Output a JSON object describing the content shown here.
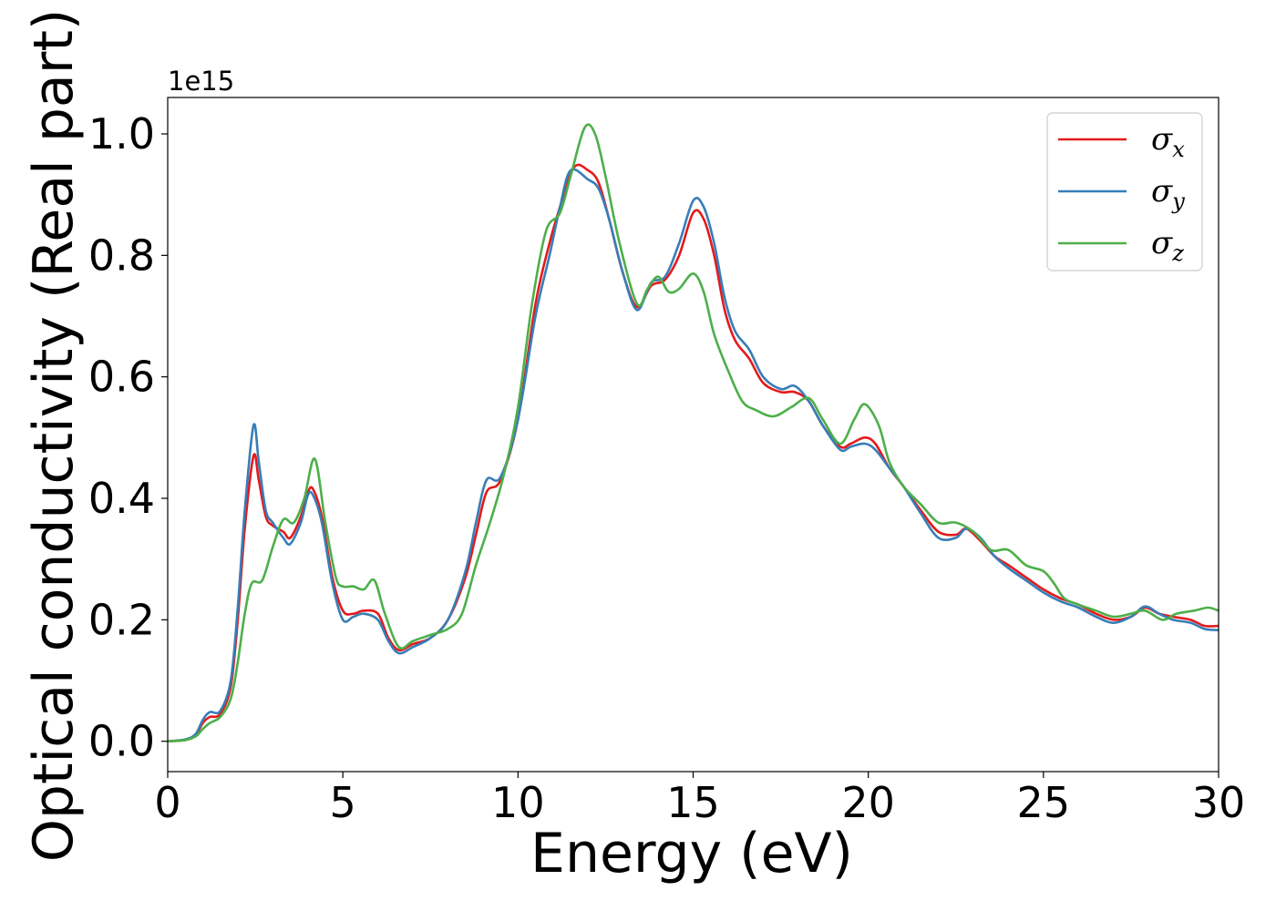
{
  "chart_data": {
    "type": "line",
    "title": "",
    "xlabel": "Energy (eV)",
    "ylabel": "Optical conductivity (Real part)",
    "y_offset_label": "1e15",
    "xlim": [
      0,
      30
    ],
    "ylim": [
      -0.05,
      1.06
    ],
    "x_ticks": [
      0,
      5,
      10,
      15,
      20,
      25,
      30
    ],
    "x_tick_labels": [
      "0",
      "5",
      "10",
      "15",
      "20",
      "25",
      "30"
    ],
    "y_ticks": [
      0.0,
      0.2,
      0.4,
      0.6,
      0.8,
      1.0
    ],
    "y_tick_labels": [
      "0.0",
      "0.2",
      "0.4",
      "0.6",
      "0.8",
      "1.0"
    ],
    "grid": false,
    "legend_position": "upper right",
    "series": [
      {
        "name": "σx",
        "name_base": "σ",
        "name_sub": "x",
        "color": "#e41a1c",
        "points": [
          [
            0,
            0.0
          ],
          [
            0.5,
            0.002
          ],
          [
            0.8,
            0.01
          ],
          [
            1.0,
            0.03
          ],
          [
            1.2,
            0.04
          ],
          [
            1.5,
            0.045
          ],
          [
            1.8,
            0.09
          ],
          [
            2.0,
            0.2
          ],
          [
            2.2,
            0.35
          ],
          [
            2.45,
            0.47
          ],
          [
            2.6,
            0.43
          ],
          [
            2.8,
            0.37
          ],
          [
            3.0,
            0.355
          ],
          [
            3.3,
            0.345
          ],
          [
            3.5,
            0.335
          ],
          [
            3.8,
            0.37
          ],
          [
            4.0,
            0.41
          ],
          [
            4.15,
            0.415
          ],
          [
            4.4,
            0.37
          ],
          [
            4.7,
            0.27
          ],
          [
            5.0,
            0.215
          ],
          [
            5.3,
            0.21
          ],
          [
            5.6,
            0.215
          ],
          [
            6.0,
            0.21
          ],
          [
            6.3,
            0.17
          ],
          [
            6.6,
            0.15
          ],
          [
            7.0,
            0.16
          ],
          [
            7.5,
            0.17
          ],
          [
            8.0,
            0.2
          ],
          [
            8.5,
            0.27
          ],
          [
            8.8,
            0.34
          ],
          [
            9.1,
            0.41
          ],
          [
            9.5,
            0.43
          ],
          [
            10.0,
            0.53
          ],
          [
            10.5,
            0.72
          ],
          [
            10.9,
            0.82
          ],
          [
            11.2,
            0.88
          ],
          [
            11.6,
            0.945
          ],
          [
            12.0,
            0.94
          ],
          [
            12.3,
            0.92
          ],
          [
            12.6,
            0.86
          ],
          [
            13.0,
            0.77
          ],
          [
            13.4,
            0.715
          ],
          [
            13.8,
            0.75
          ],
          [
            14.2,
            0.76
          ],
          [
            14.6,
            0.8
          ],
          [
            15.0,
            0.87
          ],
          [
            15.3,
            0.86
          ],
          [
            15.6,
            0.8
          ],
          [
            15.9,
            0.71
          ],
          [
            16.2,
            0.66
          ],
          [
            16.6,
            0.63
          ],
          [
            17.0,
            0.59
          ],
          [
            17.5,
            0.575
          ],
          [
            17.9,
            0.575
          ],
          [
            18.3,
            0.56
          ],
          [
            18.7,
            0.52
          ],
          [
            19.2,
            0.485
          ],
          [
            19.5,
            0.49
          ],
          [
            19.9,
            0.5
          ],
          [
            20.2,
            0.49
          ],
          [
            20.6,
            0.45
          ],
          [
            21.0,
            0.42
          ],
          [
            21.5,
            0.38
          ],
          [
            22.0,
            0.345
          ],
          [
            22.5,
            0.34
          ],
          [
            22.8,
            0.35
          ],
          [
            23.2,
            0.33
          ],
          [
            23.6,
            0.305
          ],
          [
            24.0,
            0.29
          ],
          [
            24.5,
            0.27
          ],
          [
            25.0,
            0.25
          ],
          [
            25.5,
            0.235
          ],
          [
            26.0,
            0.225
          ],
          [
            26.5,
            0.21
          ],
          [
            27.0,
            0.2
          ],
          [
            27.5,
            0.205
          ],
          [
            27.9,
            0.22
          ],
          [
            28.3,
            0.21
          ],
          [
            28.7,
            0.205
          ],
          [
            29.2,
            0.2
          ],
          [
            29.6,
            0.19
          ],
          [
            30.0,
            0.19
          ]
        ]
      },
      {
        "name": "σy",
        "name_base": "σ",
        "name_sub": "y",
        "color": "#377eb8",
        "points": [
          [
            0,
            0.0
          ],
          [
            0.5,
            0.003
          ],
          [
            0.8,
            0.012
          ],
          [
            1.0,
            0.035
          ],
          [
            1.2,
            0.048
          ],
          [
            1.5,
            0.05
          ],
          [
            1.8,
            0.1
          ],
          [
            2.0,
            0.22
          ],
          [
            2.2,
            0.38
          ],
          [
            2.45,
            0.52
          ],
          [
            2.6,
            0.46
          ],
          [
            2.8,
            0.38
          ],
          [
            3.0,
            0.36
          ],
          [
            3.3,
            0.335
          ],
          [
            3.5,
            0.325
          ],
          [
            3.8,
            0.36
          ],
          [
            4.0,
            0.405
          ],
          [
            4.15,
            0.405
          ],
          [
            4.4,
            0.36
          ],
          [
            4.7,
            0.26
          ],
          [
            5.0,
            0.2
          ],
          [
            5.3,
            0.205
          ],
          [
            5.6,
            0.21
          ],
          [
            6.0,
            0.2
          ],
          [
            6.3,
            0.165
          ],
          [
            6.6,
            0.145
          ],
          [
            7.0,
            0.155
          ],
          [
            7.5,
            0.17
          ],
          [
            8.0,
            0.2
          ],
          [
            8.5,
            0.28
          ],
          [
            8.8,
            0.36
          ],
          [
            9.1,
            0.43
          ],
          [
            9.5,
            0.435
          ],
          [
            10.0,
            0.53
          ],
          [
            10.5,
            0.7
          ],
          [
            10.9,
            0.8
          ],
          [
            11.2,
            0.88
          ],
          [
            11.5,
            0.94
          ],
          [
            12.0,
            0.925
          ],
          [
            12.3,
            0.91
          ],
          [
            12.6,
            0.86
          ],
          [
            13.0,
            0.77
          ],
          [
            13.4,
            0.71
          ],
          [
            13.8,
            0.755
          ],
          [
            14.2,
            0.765
          ],
          [
            14.6,
            0.82
          ],
          [
            15.0,
            0.89
          ],
          [
            15.3,
            0.88
          ],
          [
            15.6,
            0.82
          ],
          [
            15.9,
            0.73
          ],
          [
            16.2,
            0.675
          ],
          [
            16.6,
            0.645
          ],
          [
            17.0,
            0.6
          ],
          [
            17.5,
            0.58
          ],
          [
            17.9,
            0.585
          ],
          [
            18.3,
            0.56
          ],
          [
            18.7,
            0.52
          ],
          [
            19.2,
            0.48
          ],
          [
            19.5,
            0.485
          ],
          [
            19.9,
            0.49
          ],
          [
            20.2,
            0.48
          ],
          [
            20.6,
            0.45
          ],
          [
            21.0,
            0.42
          ],
          [
            21.5,
            0.375
          ],
          [
            22.0,
            0.335
          ],
          [
            22.5,
            0.335
          ],
          [
            22.8,
            0.35
          ],
          [
            23.2,
            0.335
          ],
          [
            23.6,
            0.305
          ],
          [
            24.0,
            0.285
          ],
          [
            24.5,
            0.265
          ],
          [
            25.0,
            0.245
          ],
          [
            25.5,
            0.23
          ],
          [
            26.0,
            0.22
          ],
          [
            26.5,
            0.205
          ],
          [
            27.0,
            0.195
          ],
          [
            27.5,
            0.205
          ],
          [
            27.9,
            0.222
          ],
          [
            28.3,
            0.21
          ],
          [
            28.7,
            0.2
          ],
          [
            29.2,
            0.195
          ],
          [
            29.6,
            0.185
          ],
          [
            30.0,
            0.183
          ]
        ]
      },
      {
        "name": "σz",
        "name_base": "σ",
        "name_sub": "z",
        "color": "#4daf4a",
        "points": [
          [
            0,
            0.0
          ],
          [
            0.5,
            0.002
          ],
          [
            0.8,
            0.008
          ],
          [
            1.0,
            0.02
          ],
          [
            1.2,
            0.03
          ],
          [
            1.5,
            0.04
          ],
          [
            1.8,
            0.07
          ],
          [
            2.0,
            0.13
          ],
          [
            2.2,
            0.21
          ],
          [
            2.4,
            0.26
          ],
          [
            2.7,
            0.265
          ],
          [
            3.0,
            0.32
          ],
          [
            3.3,
            0.365
          ],
          [
            3.6,
            0.36
          ],
          [
            3.9,
            0.4
          ],
          [
            4.2,
            0.465
          ],
          [
            4.5,
            0.36
          ],
          [
            4.8,
            0.27
          ],
          [
            5.0,
            0.255
          ],
          [
            5.3,
            0.255
          ],
          [
            5.6,
            0.25
          ],
          [
            5.9,
            0.265
          ],
          [
            6.2,
            0.21
          ],
          [
            6.6,
            0.155
          ],
          [
            7.0,
            0.165
          ],
          [
            7.5,
            0.175
          ],
          [
            8.0,
            0.185
          ],
          [
            8.4,
            0.21
          ],
          [
            8.8,
            0.29
          ],
          [
            9.2,
            0.36
          ],
          [
            9.6,
            0.44
          ],
          [
            10.0,
            0.55
          ],
          [
            10.4,
            0.72
          ],
          [
            10.8,
            0.84
          ],
          [
            11.2,
            0.87
          ],
          [
            11.5,
            0.93
          ],
          [
            11.9,
            1.01
          ],
          [
            12.2,
            1.0
          ],
          [
            12.5,
            0.93
          ],
          [
            12.9,
            0.82
          ],
          [
            13.4,
            0.72
          ],
          [
            13.7,
            0.745
          ],
          [
            14.0,
            0.765
          ],
          [
            14.3,
            0.74
          ],
          [
            14.6,
            0.745
          ],
          [
            15.0,
            0.77
          ],
          [
            15.3,
            0.74
          ],
          [
            15.6,
            0.67
          ],
          [
            16.0,
            0.61
          ],
          [
            16.4,
            0.56
          ],
          [
            16.8,
            0.545
          ],
          [
            17.3,
            0.535
          ],
          [
            17.8,
            0.55
          ],
          [
            18.3,
            0.565
          ],
          [
            18.7,
            0.53
          ],
          [
            19.2,
            0.49
          ],
          [
            19.6,
            0.53
          ],
          [
            19.9,
            0.555
          ],
          [
            20.3,
            0.52
          ],
          [
            20.6,
            0.46
          ],
          [
            21.0,
            0.42
          ],
          [
            21.5,
            0.39
          ],
          [
            22.0,
            0.36
          ],
          [
            22.5,
            0.36
          ],
          [
            23.0,
            0.345
          ],
          [
            23.5,
            0.315
          ],
          [
            24.0,
            0.315
          ],
          [
            24.5,
            0.29
          ],
          [
            25.0,
            0.28
          ],
          [
            25.3,
            0.26
          ],
          [
            25.6,
            0.235
          ],
          [
            26.0,
            0.225
          ],
          [
            26.5,
            0.215
          ],
          [
            27.0,
            0.205
          ],
          [
            27.5,
            0.21
          ],
          [
            27.9,
            0.215
          ],
          [
            28.4,
            0.2
          ],
          [
            28.8,
            0.21
          ],
          [
            29.3,
            0.215
          ],
          [
            29.7,
            0.22
          ],
          [
            30.0,
            0.215
          ]
        ]
      }
    ]
  }
}
